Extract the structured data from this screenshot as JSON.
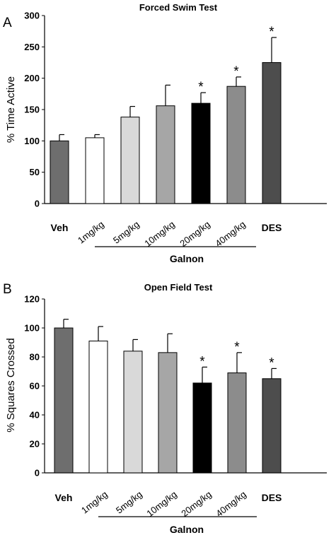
{
  "chart_data": [
    {
      "type": "bar",
      "panel_label": "A",
      "title": "Forced Swim Test",
      "ylabel": "% Time Active",
      "xlabel": "",
      "ylim": [
        0,
        300
      ],
      "yticks": [
        0,
        50,
        100,
        150,
        200,
        250,
        300
      ],
      "categories": [
        "Veh",
        "1mg/kg",
        "5mg/kg",
        "10mg/kg",
        "20mg/kg",
        "40mg/kg",
        "DES"
      ],
      "values": [
        100,
        105,
        138,
        156,
        160,
        187,
        225
      ],
      "errors": [
        10,
        5,
        17,
        33,
        17,
        15,
        40
      ],
      "significant": [
        false,
        false,
        false,
        false,
        true,
        true,
        true
      ],
      "significance_marker": "*",
      "colors": [
        "#6e6e6e",
        "#ffffff",
        "#d9d9d9",
        "#a6a6a6",
        "#000000",
        "#8c8c8c",
        "#4d4d4d"
      ],
      "group_label": "Galnon",
      "group_categories": [
        "1mg/kg",
        "5mg/kg",
        "10mg/kg",
        "20mg/kg",
        "40mg/kg"
      ]
    },
    {
      "type": "bar",
      "panel_label": "B",
      "title": "Open Field Test",
      "ylabel": "% Squares Crossed",
      "xlabel": "",
      "ylim": [
        0,
        120
      ],
      "yticks": [
        0,
        20,
        40,
        60,
        80,
        100,
        120
      ],
      "categories": [
        "Veh",
        "1mg/kg",
        "5mg/kg",
        "10mg/kg",
        "20mg/kg",
        "40mg/kg",
        "DES"
      ],
      "values": [
        100,
        91,
        84,
        83,
        62,
        69,
        65
      ],
      "errors": [
        6,
        10,
        8,
        13,
        11,
        14,
        7
      ],
      "significant": [
        false,
        false,
        false,
        false,
        true,
        true,
        true
      ],
      "significance_marker": "*",
      "colors": [
        "#6e6e6e",
        "#ffffff",
        "#d9d9d9",
        "#a6a6a6",
        "#000000",
        "#8c8c8c",
        "#4d4d4d"
      ],
      "group_label": "Galnon",
      "group_categories": [
        "1mg/kg",
        "5mg/kg",
        "10mg/kg",
        "20mg/kg",
        "40mg/kg"
      ]
    }
  ]
}
